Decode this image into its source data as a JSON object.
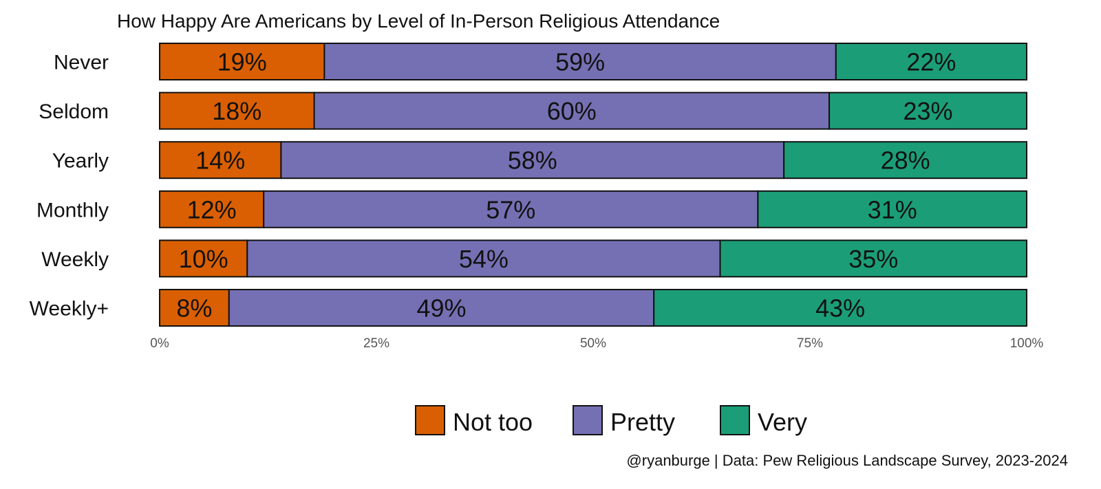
{
  "chart_data": {
    "type": "bar",
    "orientation": "horizontal",
    "stacked": true,
    "title": "How Happy Are Americans by Level of In-Person Religious Attendance",
    "categories": [
      "Never",
      "Seldom",
      "Yearly",
      "Monthly",
      "Weekly",
      "Weekly+"
    ],
    "series": [
      {
        "name": "Not too",
        "color": "#d95f02",
        "values": [
          19,
          18,
          14,
          12,
          10,
          8
        ]
      },
      {
        "name": "Pretty",
        "color": "#7570b3",
        "values": [
          59,
          60,
          58,
          57,
          54,
          49
        ]
      },
      {
        "name": "Very",
        "color": "#1b9e77",
        "values": [
          22,
          23,
          28,
          31,
          35,
          43
        ]
      }
    ],
    "xlim": [
      0,
      100
    ],
    "x_ticks": [
      "0%",
      "25%",
      "50%",
      "75%",
      "100%"
    ],
    "xlabel": "",
    "ylabel": "",
    "grid": false,
    "legend_position": "bottom",
    "caption": "@ryanburge | Data: Pew Religious Landscape Survey, 2023-2024"
  }
}
